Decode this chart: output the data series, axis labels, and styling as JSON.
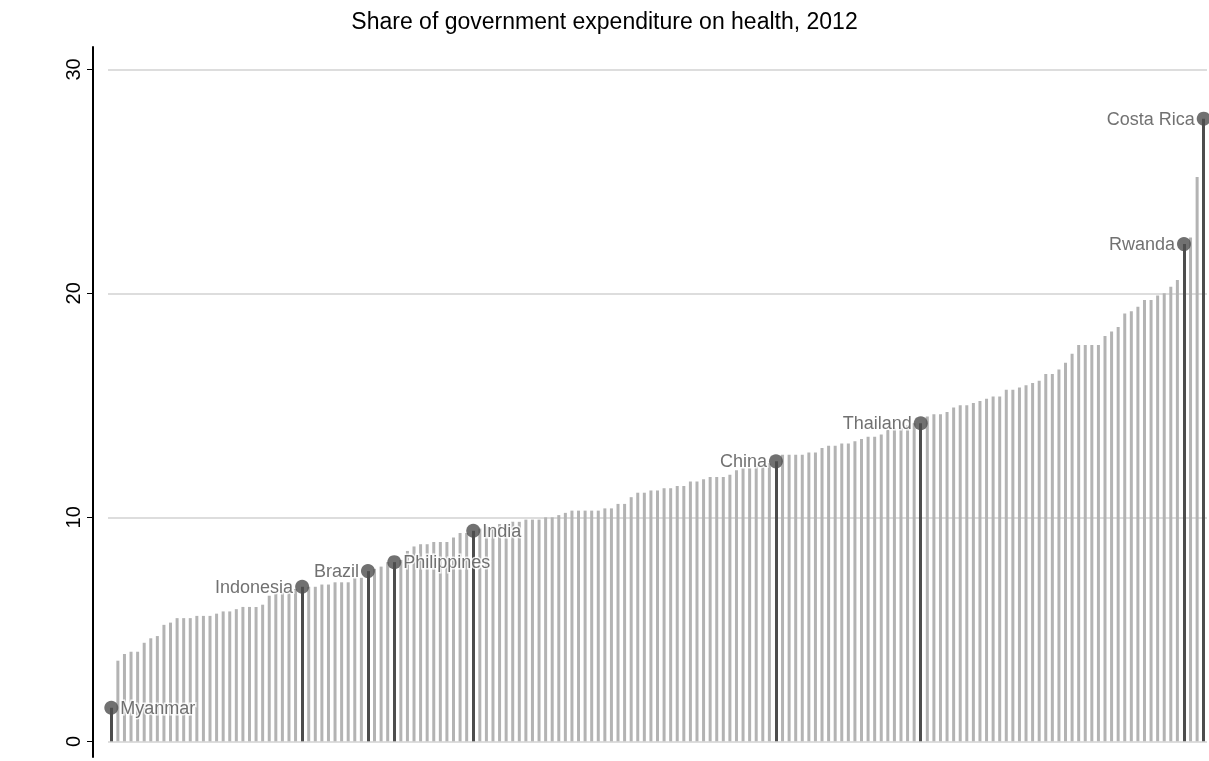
{
  "chart_data": {
    "type": "bar",
    "title": "Share of government expenditure on health, 2012",
    "categories": [
      null,
      null,
      null,
      null,
      null,
      null,
      null,
      null,
      null,
      null,
      null,
      null,
      null,
      null,
      null,
      null,
      null,
      null,
      null,
      null,
      null,
      null,
      null,
      null,
      null,
      null,
      null,
      null,
      null,
      null,
      null,
      null,
      null,
      null,
      null,
      null,
      null,
      null,
      null,
      null,
      null,
      null,
      null,
      null,
      null,
      null,
      null,
      null,
      null,
      null,
      null,
      null,
      null,
      null,
      null,
      null,
      null,
      null,
      null,
      null,
      null,
      null,
      null,
      null,
      null,
      null,
      null,
      null,
      null,
      null,
      null,
      null,
      null,
      null,
      null,
      null,
      null,
      null,
      null,
      null,
      null,
      null,
      null,
      null,
      null,
      null,
      null,
      null,
      null,
      null,
      null,
      null,
      null,
      null,
      null,
      null,
      null,
      null,
      null,
      null,
      null,
      null,
      null,
      null,
      null,
      null,
      null,
      null,
      null,
      null,
      null,
      null,
      null,
      null,
      null,
      null,
      null,
      null,
      null,
      null,
      null,
      null,
      null,
      null,
      null,
      null,
      null,
      null,
      null,
      null,
      null,
      null,
      null,
      null,
      null,
      null,
      null,
      null,
      null,
      null,
      null,
      null,
      null,
      null,
      null,
      null,
      null,
      null,
      null,
      null,
      null,
      null,
      null,
      null,
      null,
      null,
      null,
      null,
      null,
      null,
      null,
      null,
      null,
      null,
      null,
      null,
      null
    ],
    "series": [
      {
        "color": "#b3b3b3",
        "values": [
          null,
          3.6,
          3.9,
          4.0,
          4.0,
          4.4,
          4.6,
          4.7,
          5.2,
          5.3,
          5.5,
          5.5,
          5.5,
          5.6,
          5.6,
          5.6,
          5.7,
          5.8,
          5.8,
          5.9,
          6.0,
          6.0,
          6.0,
          6.1,
          6.5,
          6.6,
          6.7,
          6.8,
          6.8,
          null,
          6.9,
          6.9,
          7.0,
          7.0,
          7.1,
          7.1,
          7.1,
          7.3,
          7.3,
          null,
          7.7,
          7.8,
          8.0,
          null,
          8.1,
          8.5,
          8.7,
          8.8,
          8.8,
          8.9,
          8.9,
          8.9,
          9.1,
          9.3,
          9.3,
          null,
          9.5,
          9.6,
          9.6,
          9.7,
          9.7,
          9.8,
          9.8,
          9.9,
          9.9,
          9.9,
          10.0,
          10.0,
          10.1,
          10.2,
          10.3,
          10.3,
          10.3,
          10.3,
          10.3,
          10.4,
          10.4,
          10.6,
          10.6,
          10.9,
          11.1,
          11.1,
          11.2,
          11.2,
          11.3,
          11.3,
          11.4,
          11.4,
          11.6,
          11.6,
          11.7,
          11.8,
          11.8,
          11.8,
          11.9,
          12.1,
          12.2,
          12.2,
          12.3,
          12.3,
          12.4,
          null,
          12.8,
          12.8,
          12.8,
          12.8,
          12.9,
          12.9,
          13.1,
          13.2,
          13.2,
          13.3,
          13.3,
          13.4,
          13.5,
          13.6,
          13.6,
          13.7,
          13.9,
          14.0,
          14.0,
          14.1,
          14.2,
          null,
          14.5,
          14.6,
          14.6,
          14.7,
          14.9,
          15.0,
          15.0,
          15.1,
          15.2,
          15.3,
          15.4,
          15.4,
          15.7,
          15.7,
          15.8,
          15.9,
          16.0,
          16.1,
          16.4,
          16.4,
          16.6,
          16.9,
          17.3,
          17.7,
          17.7,
          17.7,
          17.7,
          18.1,
          18.3,
          18.5,
          19.1,
          19.2,
          19.4,
          19.7,
          19.7,
          19.9,
          20.0,
          20.3,
          20.6,
          null,
          22.5,
          25.2,
          null
        ]
      },
      {
        "type": "lollipop",
        "color": "#4d4d4d",
        "marker": "circle",
        "values": [
          1.5,
          null,
          null,
          null,
          null,
          null,
          null,
          null,
          null,
          null,
          null,
          null,
          null,
          null,
          null,
          null,
          null,
          null,
          null,
          null,
          null,
          null,
          null,
          null,
          null,
          null,
          null,
          null,
          null,
          6.9,
          null,
          null,
          null,
          null,
          null,
          null,
          null,
          null,
          null,
          7.6,
          null,
          null,
          null,
          8.0,
          null,
          null,
          null,
          null,
          null,
          null,
          null,
          null,
          null,
          null,
          null,
          9.4,
          null,
          null,
          null,
          null,
          null,
          null,
          null,
          null,
          null,
          null,
          null,
          null,
          null,
          null,
          null,
          null,
          null,
          null,
          null,
          null,
          null,
          null,
          null,
          null,
          null,
          null,
          null,
          null,
          null,
          null,
          null,
          null,
          null,
          null,
          null,
          null,
          null,
          null,
          null,
          null,
          null,
          null,
          null,
          null,
          null,
          12.5,
          null,
          null,
          null,
          null,
          null,
          null,
          null,
          null,
          null,
          null,
          null,
          null,
          null,
          null,
          null,
          null,
          null,
          null,
          null,
          null,
          null,
          14.2,
          null,
          null,
          null,
          null,
          null,
          null,
          null,
          null,
          null,
          null,
          null,
          null,
          null,
          null,
          null,
          null,
          null,
          null,
          null,
          null,
          null,
          null,
          null,
          null,
          null,
          null,
          null,
          null,
          null,
          null,
          null,
          null,
          null,
          null,
          null,
          null,
          null,
          null,
          null,
          22.2,
          null,
          null,
          27.8
        ],
        "value_labels": [
          "Myanmar",
          null,
          null,
          null,
          null,
          null,
          null,
          null,
          null,
          null,
          null,
          null,
          null,
          null,
          null,
          null,
          null,
          null,
          null,
          null,
          null,
          null,
          null,
          null,
          null,
          null,
          null,
          null,
          null,
          "Indonesia",
          null,
          null,
          null,
          null,
          null,
          null,
          null,
          null,
          null,
          "Brazil",
          null,
          null,
          null,
          "Philippines",
          null,
          null,
          null,
          null,
          null,
          null,
          null,
          null,
          null,
          null,
          null,
          "India",
          null,
          null,
          null,
          null,
          null,
          null,
          null,
          null,
          null,
          null,
          null,
          null,
          null,
          null,
          null,
          null,
          null,
          null,
          null,
          null,
          null,
          null,
          null,
          null,
          null,
          null,
          null,
          null,
          null,
          null,
          null,
          null,
          null,
          null,
          null,
          null,
          null,
          null,
          null,
          null,
          null,
          null,
          null,
          null,
          null,
          "China",
          null,
          null,
          null,
          null,
          null,
          null,
          null,
          null,
          null,
          null,
          null,
          null,
          null,
          null,
          null,
          null,
          null,
          null,
          null,
          null,
          null,
          "Thailand",
          null,
          null,
          null,
          null,
          null,
          null,
          null,
          null,
          null,
          null,
          null,
          null,
          null,
          null,
          null,
          null,
          null,
          null,
          null,
          null,
          null,
          null,
          null,
          null,
          null,
          null,
          null,
          null,
          null,
          null,
          null,
          null,
          null,
          null,
          null,
          null,
          null,
          null,
          null,
          "Rwanda",
          null,
          null,
          "Costa Rica"
        ]
      }
    ],
    "ylim": [
      -0.7,
      31
    ],
    "yticks": [
      0,
      10,
      20,
      30
    ],
    "grid": "y",
    "tick_labels": "y"
  }
}
